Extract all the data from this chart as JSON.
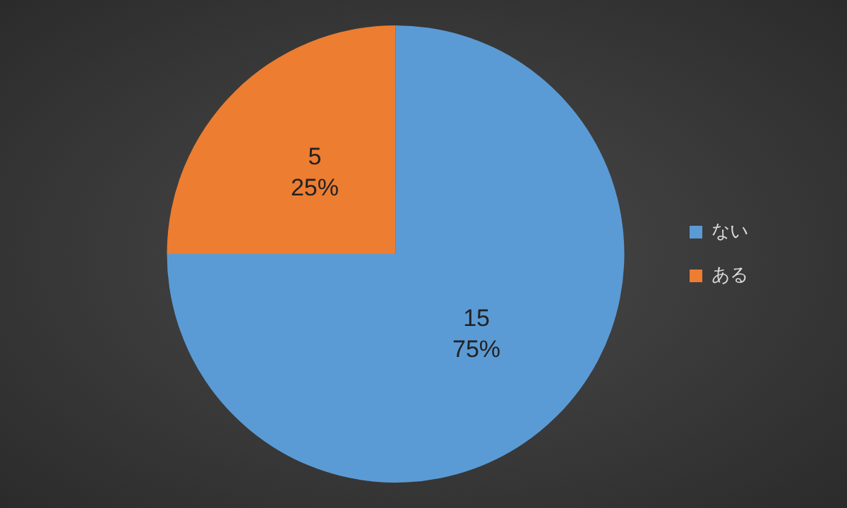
{
  "chart_data": {
    "type": "pie",
    "categories": [
      "ない",
      "ある"
    ],
    "values": [
      15,
      5
    ],
    "colors": [
      "#5b9bd5",
      "#ed7d31"
    ],
    "value_labels": [
      "15\n75%",
      "5\n25%"
    ],
    "legend": "right"
  }
}
